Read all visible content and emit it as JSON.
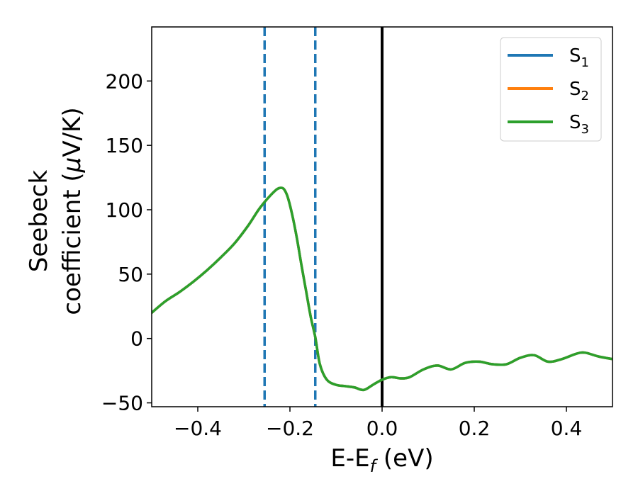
{
  "chart_data": {
    "type": "line",
    "xlabel": {
      "main": "E-E",
      "sub": "f",
      "suffix": " (eV)"
    },
    "ylabel": {
      "line1": "Seebeck",
      "line2_main": "coefficient  (",
      "line2_mu": "μ",
      "line2_suffix": "V/K)"
    },
    "xlim": [
      -0.5,
      0.5
    ],
    "ylim": [
      -53,
      242
    ],
    "xticks": [
      {
        "value": -0.4,
        "label": "−0.4"
      },
      {
        "value": -0.2,
        "label": "−0.2"
      },
      {
        "value": 0.0,
        "label": "0.0"
      },
      {
        "value": 0.2,
        "label": "0.2"
      },
      {
        "value": 0.4,
        "label": "0.4"
      }
    ],
    "yticks": [
      {
        "value": -50,
        "label": "−50"
      },
      {
        "value": 0,
        "label": "0"
      },
      {
        "value": 50,
        "label": "50"
      },
      {
        "value": 100,
        "label": "100"
      },
      {
        "value": 150,
        "label": "150"
      },
      {
        "value": 200,
        "label": "200"
      }
    ],
    "grid": false,
    "legend_position": "top-right",
    "series": [
      {
        "name": "S",
        "sub": "1",
        "color": "#1f77b4",
        "shared_with": "S3"
      },
      {
        "name": "S",
        "sub": "2",
        "color": "#ff7f0e",
        "shared_with": "S3"
      },
      {
        "name": "S",
        "sub": "3",
        "color": "#2ca02c",
        "x": [
          -0.5,
          -0.47,
          -0.44,
          -0.41,
          -0.38,
          -0.35,
          -0.32,
          -0.29,
          -0.27,
          -0.255,
          -0.24,
          -0.228,
          -0.22,
          -0.213,
          -0.205,
          -0.195,
          -0.185,
          -0.175,
          -0.165,
          -0.155,
          -0.145,
          -0.135,
          -0.12,
          -0.1,
          -0.08,
          -0.06,
          -0.04,
          -0.02,
          0.0,
          0.02,
          0.04,
          0.06,
          0.09,
          0.12,
          0.15,
          0.18,
          0.21,
          0.24,
          0.27,
          0.3,
          0.33,
          0.36,
          0.39,
          0.42,
          0.44,
          0.47,
          0.5
        ],
        "y": [
          20,
          29,
          36,
          44,
          53,
          63,
          74,
          88,
          99,
          106,
          112,
          116,
          117,
          116,
          110,
          96,
          78,
          57,
          37,
          17,
          1,
          -20,
          -32,
          -36,
          -37,
          -38,
          -40,
          -36,
          -32,
          -30,
          -31,
          -30,
          -24,
          -21,
          -24,
          -19,
          -18,
          -20,
          -20,
          -15,
          -13,
          -18,
          -16,
          -12,
          -11,
          -14,
          -16
        ]
      }
    ],
    "vlines": [
      {
        "x": -0.255,
        "style": "dashed",
        "color": "#1f77b4"
      },
      {
        "x": -0.145,
        "style": "dashed",
        "color": "#1f77b4"
      },
      {
        "x": 0.0,
        "style": "solid",
        "color": "#000000"
      }
    ]
  }
}
